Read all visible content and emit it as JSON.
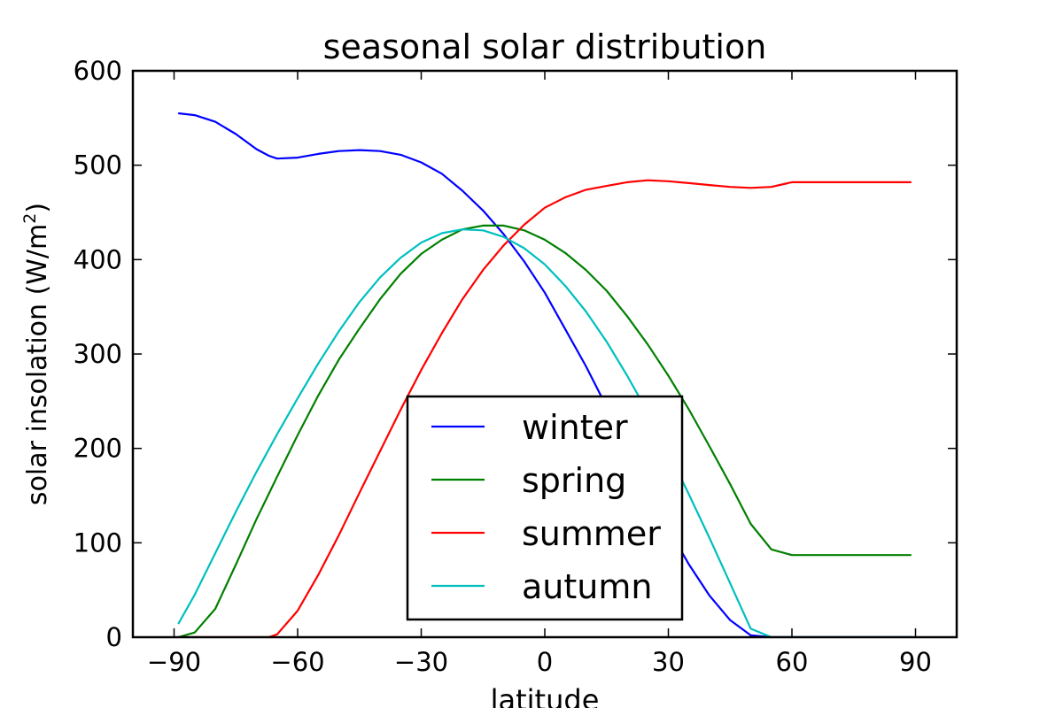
{
  "chart_data": {
    "type": "line",
    "title": "seasonal solar distribution",
    "xlabel": "latitude",
    "ylabel": "solar insolation (W/m",
    "ylabel_sup": "2",
    "ylabel_close": ")",
    "xlim": [
      -100,
      100
    ],
    "ylim": [
      0,
      600
    ],
    "xticks": [
      -90,
      -60,
      -30,
      0,
      30,
      60,
      90
    ],
    "xtick_labels": [
      "−90",
      "−60",
      "−30",
      "0",
      "30",
      "60",
      "90"
    ],
    "yticks": [
      0,
      100,
      200,
      300,
      400,
      500,
      600
    ],
    "ytick_labels": [
      "0",
      "100",
      "200",
      "300",
      "400",
      "500",
      "600"
    ],
    "grid": false,
    "legend_position": "lower-center",
    "x": [
      -89,
      -85,
      -80,
      -75,
      -70,
      -67,
      -65,
      -60,
      -55,
      -50,
      -45,
      -40,
      -35,
      -30,
      -25,
      -20,
      -15,
      -10,
      -5,
      0,
      5,
      10,
      15,
      20,
      25,
      30,
      35,
      40,
      45,
      50,
      55,
      60,
      62,
      64,
      66,
      67,
      70,
      75,
      80,
      85,
      88,
      89
    ],
    "series": [
      {
        "name": "winter",
        "color": "#0000ff",
        "values": [
          555,
          553,
          546,
          533,
          517,
          510,
          507,
          508,
          512,
          515,
          516,
          515,
          511,
          503,
          491,
          473,
          452,
          427,
          398,
          365,
          326,
          287,
          244,
          200,
          156,
          115,
          77,
          44,
          18,
          2,
          0,
          0,
          0,
          0,
          0,
          0,
          0,
          0,
          0,
          0,
          0,
          0
        ]
      },
      {
        "name": "spring",
        "color": "#008000",
        "values": [
          0,
          5,
          30,
          77,
          125,
          152,
          170,
          214,
          256,
          294,
          327,
          358,
          385,
          406,
          421,
          432,
          436,
          436,
          431,
          421,
          407,
          389,
          367,
          340,
          310,
          277,
          241,
          202,
          162,
          120,
          93,
          87,
          87,
          87,
          87,
          87,
          87,
          87,
          87,
          87,
          87,
          87
        ]
      },
      {
        "name": "summer",
        "color": "#ff0000",
        "values": [
          0,
          0,
          0,
          0,
          0,
          0,
          3,
          28,
          66,
          108,
          153,
          197,
          241,
          283,
          322,
          358,
          389,
          415,
          437,
          455,
          466,
          474,
          478,
          482,
          484,
          483,
          481,
          479,
          477,
          476,
          477,
          482,
          482,
          482,
          482,
          482,
          482,
          482,
          482,
          482,
          482,
          482
        ]
      },
      {
        "name": "autumn",
        "color": "#00bfbf",
        "values": [
          14,
          45,
          89,
          133,
          175,
          199,
          215,
          253,
          290,
          324,
          355,
          381,
          402,
          418,
          428,
          432,
          431,
          424,
          412,
          395,
          372,
          345,
          313,
          277,
          238,
          196,
          151,
          105,
          57,
          9,
          0,
          0,
          0,
          0,
          0,
          0,
          0,
          0,
          0,
          0,
          0,
          0
        ]
      }
    ]
  }
}
